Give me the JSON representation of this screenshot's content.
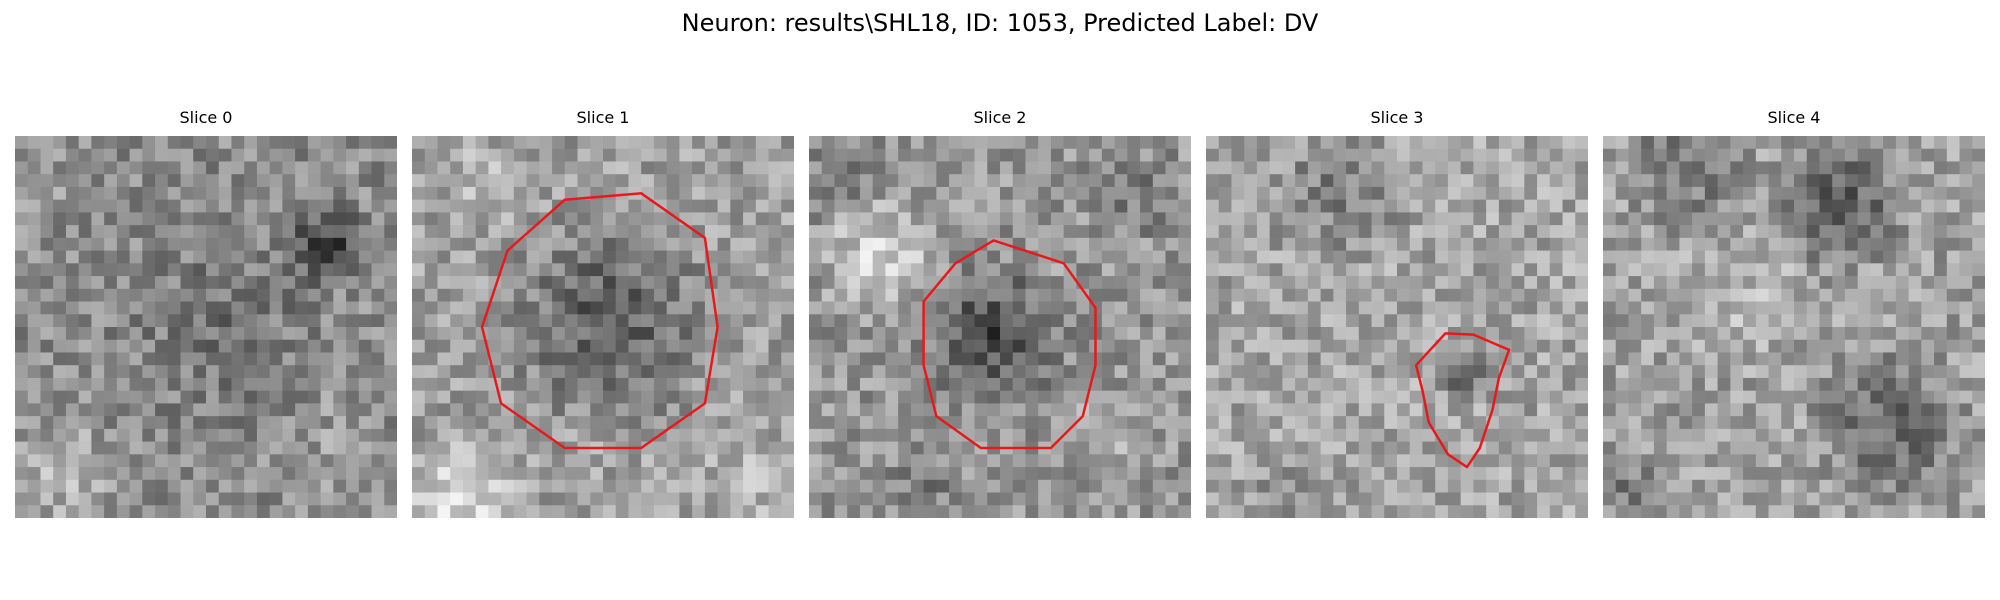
{
  "figure": {
    "title": "Neuron: results\\SHL18, ID: 1053, Predicted Label: DV"
  },
  "panels": [
    {
      "title": "Slice 0",
      "contour": false
    },
    {
      "title": "Slice 1",
      "contour": true
    },
    {
      "title": "Slice 2",
      "contour": true
    },
    {
      "title": "Slice 3",
      "contour": true
    },
    {
      "title": "Slice 4",
      "contour": false
    }
  ],
  "colors": {
    "contour": "#e8191b"
  }
}
